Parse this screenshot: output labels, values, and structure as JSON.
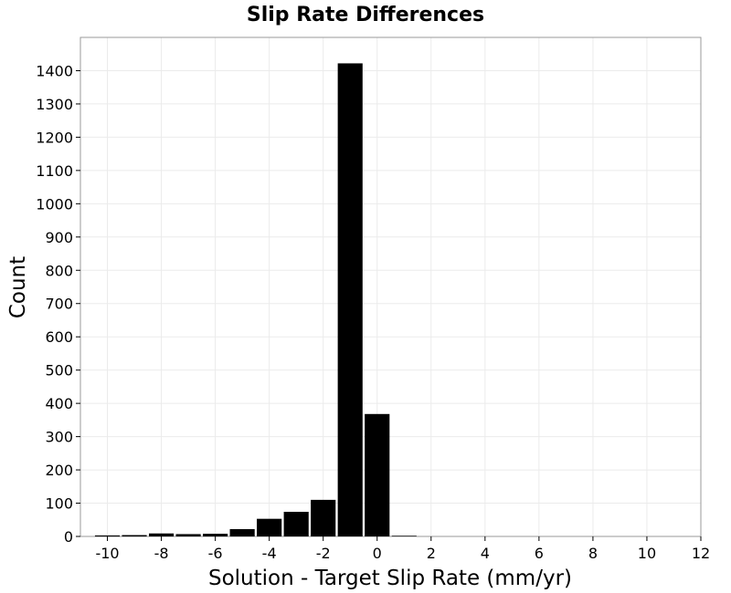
{
  "chart_data": {
    "type": "bar",
    "title": "Slip Rate Differences",
    "xlabel": "Solution - Target Slip Rate (mm/yr)",
    "ylabel": "Count",
    "xlim": [
      -11,
      12
    ],
    "ylim": [
      0,
      1500
    ],
    "xticks": [
      "-10",
      "-8",
      "-6",
      "-4",
      "-2",
      "0",
      "2",
      "4",
      "6",
      "8",
      "10",
      "12"
    ],
    "yticks": [
      "0",
      "100",
      "200",
      "300",
      "400",
      "500",
      "600",
      "700",
      "800",
      "900",
      "1000",
      "1100",
      "1200",
      "1300",
      "1400"
    ],
    "bin_width": 1,
    "bin_centers": [
      -10,
      -9,
      -8,
      -7,
      -6,
      -5,
      -4,
      -3,
      -2,
      -1,
      0,
      1
    ],
    "values": [
      3,
      4,
      9,
      7,
      8,
      22,
      53,
      74,
      110,
      1422,
      368,
      2
    ],
    "bar_color": "#000000",
    "grid": true
  }
}
